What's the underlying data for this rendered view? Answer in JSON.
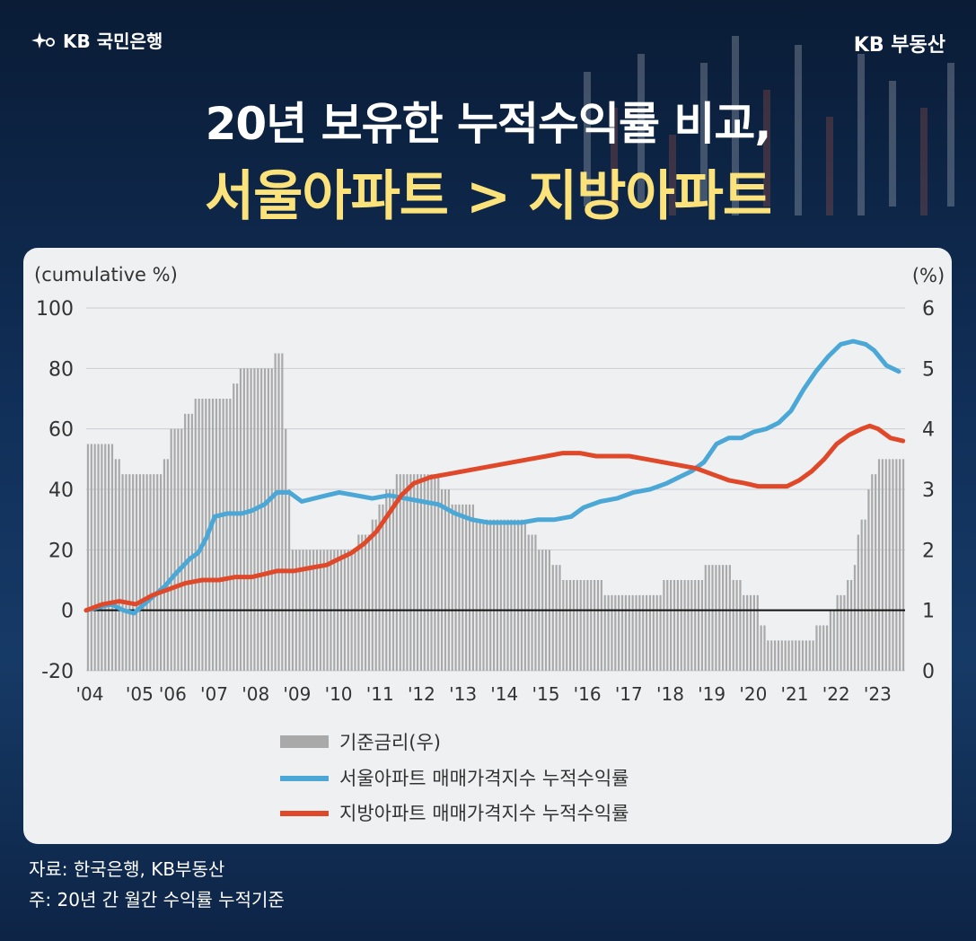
{
  "brand": {
    "left": "KB 국민은행",
    "right": "KB 부동산"
  },
  "title": {
    "line1": "20년 보유한 누적수익률 비교,",
    "line2": "서울아파트 > 지방아파트"
  },
  "notes": {
    "source": "자료: 한국은행, KB부동산",
    "note": "주: 20년 간 월간 수익률 누적기준"
  },
  "colors": {
    "seoul": "#4aa7d6",
    "local": "#e0482a",
    "rate_bar": "#a9a9a9",
    "title_highlight": "#fbe27a"
  },
  "icons": {
    "kb_logo": "star-swirl-icon"
  },
  "chart_data": {
    "type": "line",
    "left_axis_label": "(cumulative %)",
    "right_axis_label": "(%)",
    "ylim_left": [
      -20,
      100
    ],
    "yticks_left": [
      "100",
      "80",
      "60",
      "40",
      "20",
      "0",
      "-20"
    ],
    "ylim_right": [
      0,
      6
    ],
    "yticks_right": [
      "6",
      "5",
      "4",
      "3",
      "2",
      "1",
      "0"
    ],
    "xlim": [
      2004.0,
      2023.75
    ],
    "xticks": [
      {
        "label": "'04",
        "pos": 2004.0
      },
      {
        "label": "'05",
        "pos": 2005.2
      },
      {
        "label": "'06",
        "pos": 2006.0
      },
      {
        "label": "'07",
        "pos": 2007.0
      },
      {
        "label": "'08",
        "pos": 2008.0
      },
      {
        "label": "'09",
        "pos": 2009.0
      },
      {
        "label": "'10",
        "pos": 2010.0
      },
      {
        "label": "'11",
        "pos": 2011.0
      },
      {
        "label": "'12",
        "pos": 2012.0
      },
      {
        "label": "'13",
        "pos": 2013.0
      },
      {
        "label": "'14",
        "pos": 2014.0
      },
      {
        "label": "'15",
        "pos": 2015.0
      },
      {
        "label": "'16",
        "pos": 2016.0
      },
      {
        "label": "'17",
        "pos": 2017.0
      },
      {
        "label": "'18",
        "pos": 2018.0
      },
      {
        "label": "'19",
        "pos": 2019.0
      },
      {
        "label": "'20",
        "pos": 2020.0
      },
      {
        "label": "'21",
        "pos": 2021.0
      },
      {
        "label": "'22",
        "pos": 2022.0
      },
      {
        "label": "'23",
        "pos": 2023.0
      }
    ],
    "bar_series": {
      "name": "기준금리(우)",
      "axis": "right",
      "steps": [
        [
          2004.0,
          3.75
        ],
        [
          2004.65,
          3.5
        ],
        [
          2004.85,
          3.25
        ],
        [
          2005.8,
          3.5
        ],
        [
          2006.05,
          4.0
        ],
        [
          2006.35,
          4.25
        ],
        [
          2006.6,
          4.5
        ],
        [
          2007.5,
          4.75
        ],
        [
          2007.65,
          5.0
        ],
        [
          2008.55,
          5.25
        ],
        [
          2008.75,
          4.0
        ],
        [
          2008.85,
          3.0
        ],
        [
          2008.95,
          2.0
        ],
        [
          2010.55,
          2.25
        ],
        [
          2010.85,
          2.5
        ],
        [
          2011.05,
          2.75
        ],
        [
          2011.2,
          3.0
        ],
        [
          2011.45,
          3.25
        ],
        [
          2012.5,
          3.0
        ],
        [
          2012.8,
          2.75
        ],
        [
          2013.35,
          2.5
        ],
        [
          2014.65,
          2.25
        ],
        [
          2014.85,
          2.0
        ],
        [
          2015.2,
          1.75
        ],
        [
          2015.45,
          1.5
        ],
        [
          2016.45,
          1.25
        ],
        [
          2017.9,
          1.5
        ],
        [
          2018.9,
          1.75
        ],
        [
          2019.55,
          1.5
        ],
        [
          2019.8,
          1.25
        ],
        [
          2020.2,
          0.75
        ],
        [
          2020.4,
          0.5
        ],
        [
          2021.6,
          0.75
        ],
        [
          2021.9,
          1.0
        ],
        [
          2022.1,
          1.25
        ],
        [
          2022.35,
          1.5
        ],
        [
          2022.5,
          1.75
        ],
        [
          2022.55,
          2.25
        ],
        [
          2022.7,
          2.5
        ],
        [
          2022.8,
          3.0
        ],
        [
          2022.9,
          3.25
        ],
        [
          2023.05,
          3.5
        ]
      ]
    },
    "series": [
      {
        "name": "서울아파트 매매가격지수 누적수익률",
        "axis": "left",
        "x": [
          2004.0,
          2004.3,
          2004.6,
          2004.9,
          2005.15,
          2005.4,
          2005.65,
          2005.9,
          2006.15,
          2006.5,
          2006.7,
          2006.9,
          2007.1,
          2007.4,
          2007.75,
          2008.0,
          2008.3,
          2008.6,
          2008.9,
          2009.2,
          2009.5,
          2009.8,
          2010.1,
          2010.5,
          2010.9,
          2011.3,
          2011.7,
          2012.1,
          2012.5,
          2012.9,
          2013.3,
          2013.7,
          2014.1,
          2014.5,
          2014.9,
          2015.3,
          2015.7,
          2016.0,
          2016.4,
          2016.8,
          2017.2,
          2017.6,
          2018.0,
          2018.3,
          2018.6,
          2018.9,
          2019.2,
          2019.5,
          2019.8,
          2020.1,
          2020.4,
          2020.7,
          2021.0,
          2021.3,
          2021.6,
          2021.9,
          2022.2,
          2022.5,
          2022.8,
          2023.0,
          2023.3,
          2023.6
        ],
        "y": [
          0,
          1,
          2,
          0,
          -1,
          2,
          5,
          8,
          12,
          17,
          19,
          24,
          31,
          32,
          32,
          33,
          35,
          39,
          39,
          36,
          37,
          38,
          39,
          38,
          37,
          38,
          37,
          36,
          35,
          32,
          30,
          29,
          29,
          29,
          30,
          30,
          31,
          34,
          36,
          37,
          39,
          40,
          42,
          44,
          46,
          49,
          55,
          57,
          57,
          59,
          60,
          62,
          66,
          73,
          79,
          84,
          88,
          89,
          88,
          86,
          81,
          79
        ]
      },
      {
        "name": "지방아파트 매매가격지수 누적수익률",
        "axis": "left",
        "x": [
          2004.0,
          2004.4,
          2004.8,
          2005.2,
          2005.6,
          2006.0,
          2006.4,
          2006.8,
          2007.2,
          2007.6,
          2008.0,
          2008.3,
          2008.6,
          2009.0,
          2009.4,
          2009.8,
          2010.1,
          2010.4,
          2010.7,
          2011.0,
          2011.3,
          2011.6,
          2011.9,
          2012.3,
          2012.7,
          2013.1,
          2013.5,
          2013.9,
          2014.3,
          2014.7,
          2015.1,
          2015.5,
          2015.9,
          2016.3,
          2016.7,
          2017.1,
          2017.5,
          2017.9,
          2018.3,
          2018.7,
          2019.1,
          2019.5,
          2019.9,
          2020.2,
          2020.6,
          2020.9,
          2021.2,
          2021.5,
          2021.8,
          2022.1,
          2022.4,
          2022.7,
          2022.9,
          2023.1,
          2023.4,
          2023.7
        ],
        "y": [
          0,
          2,
          3,
          2,
          5,
          7,
          9,
          10,
          10,
          11,
          11,
          12,
          13,
          13,
          14,
          15,
          17,
          19,
          22,
          26,
          32,
          38,
          42,
          44,
          45,
          46,
          47,
          48,
          49,
          50,
          51,
          52,
          52,
          51,
          51,
          51,
          50,
          49,
          48,
          47,
          45,
          43,
          42,
          41,
          41,
          41,
          43,
          46,
          50,
          55,
          58,
          60,
          61,
          60,
          57,
          56
        ]
      }
    ]
  }
}
